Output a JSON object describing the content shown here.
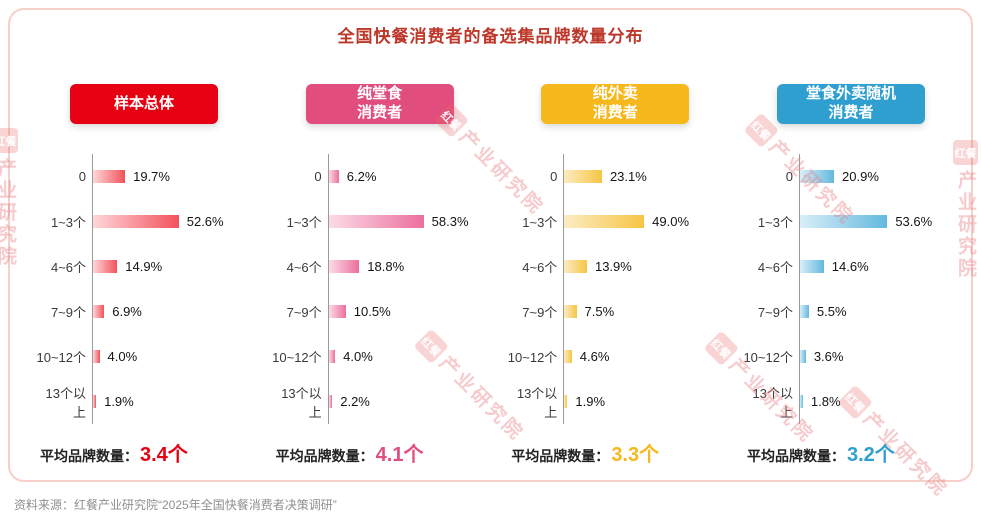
{
  "title": "全国快餐消费者的备选集品牌数量分布",
  "avg_label": "平均品牌数量：",
  "categories": [
    "0",
    "1~3个",
    "4~6个",
    "7~9个",
    "10~12个",
    "13个以上"
  ],
  "panels": [
    {
      "title_lines": [
        "样本总体"
      ],
      "color": "#e60012",
      "bar_from": "#ffd7d8",
      "bar_to": "#f2525d",
      "values": [
        19.7,
        52.6,
        14.9,
        6.9,
        4.0,
        1.9
      ],
      "value_labels": [
        "19.7%",
        "52.6%",
        "14.9%",
        "6.9%",
        "4.0%",
        "1.9%"
      ],
      "avg": "3.4个"
    },
    {
      "title_lines": [
        "纯堂食",
        "消费者"
      ],
      "color": "#e14d7c",
      "bar_from": "#fbdbe6",
      "bar_to": "#ec6f9d",
      "values": [
        6.2,
        58.3,
        18.8,
        10.5,
        4.0,
        2.2
      ],
      "value_labels": [
        "6.2%",
        "58.3%",
        "18.8%",
        "10.5%",
        "4.0%",
        "2.2%"
      ],
      "avg": "4.1个"
    },
    {
      "title_lines": [
        "纯外卖",
        "消费者"
      ],
      "color": "#f5b81d",
      "bar_from": "#fcecc3",
      "bar_to": "#f6c545",
      "values": [
        23.1,
        49.0,
        13.9,
        7.5,
        4.6,
        1.9
      ],
      "value_labels": [
        "23.1%",
        "49.0%",
        "13.9%",
        "7.5%",
        "4.6%",
        "1.9%"
      ],
      "avg": "3.3个"
    },
    {
      "title_lines": [
        "堂食外卖随机",
        "消费者"
      ],
      "color": "#2f9fd0",
      "bar_from": "#d9eef8",
      "bar_to": "#63b9df",
      "values": [
        20.9,
        53.6,
        14.6,
        5.5,
        3.6,
        1.8
      ],
      "value_labels": [
        "20.9%",
        "53.6%",
        "14.6%",
        "5.5%",
        "3.6%",
        "1.8%"
      ],
      "avg": "3.2个"
    }
  ],
  "watermark": {
    "logo": "红餐",
    "label": "产业研究院"
  },
  "source": "资料来源：红餐产业研究院“2025年全国快餐消费者决策调研”",
  "chart_data": {
    "type": "bar",
    "orientation": "horizontal",
    "title": "全国快餐消费者的备选集品牌数量分布",
    "categories": [
      "0",
      "1~3个",
      "4~6个",
      "7~9个",
      "10~12个",
      "13个以上"
    ],
    "unit": "%",
    "xlim": [
      0,
      60
    ],
    "series": [
      {
        "name": "样本总体",
        "values": [
          19.7,
          52.6,
          14.9,
          6.9,
          4.0,
          1.9
        ],
        "average_brand_count": "3.4个",
        "color": "#e60012"
      },
      {
        "name": "纯堂食消费者",
        "values": [
          6.2,
          58.3,
          18.8,
          10.5,
          4.0,
          2.2
        ],
        "average_brand_count": "4.1个",
        "color": "#e14d7c"
      },
      {
        "name": "纯外卖消费者",
        "values": [
          23.1,
          49.0,
          13.9,
          7.5,
          4.6,
          1.9
        ],
        "average_brand_count": "3.3个",
        "color": "#f5b81d"
      },
      {
        "name": "堂食外卖随机消费者",
        "values": [
          20.9,
          53.6,
          14.6,
          5.5,
          3.6,
          1.8
        ],
        "average_brand_count": "3.2个",
        "color": "#2f9fd0"
      }
    ],
    "source": "资料来源：红餐产业研究院“2025年全国快餐消费者决策调研”"
  }
}
